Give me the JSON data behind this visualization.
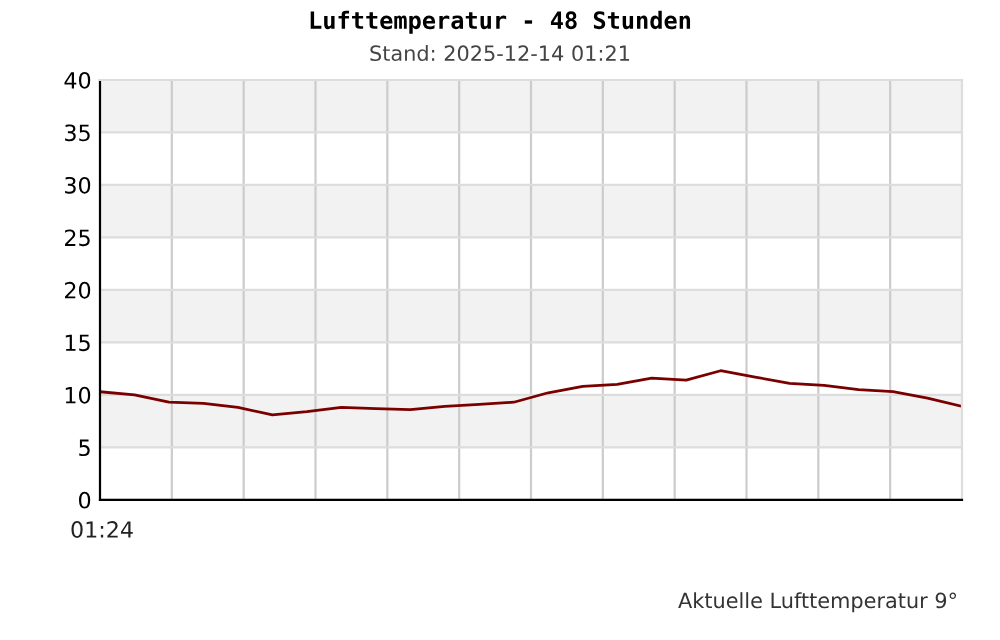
{
  "chart_data": {
    "type": "line",
    "title": "Lufttemperatur - 48 Stunden",
    "subtitle": "Stand: 2025-12-14 01:21",
    "annotations": [
      "01:24",
      "Aktuelle Lufttemperatur 9°"
    ],
    "categories": [
      null,
      null,
      null,
      null,
      null,
      null,
      null,
      null,
      null,
      null,
      null,
      null,
      null,
      null,
      null,
      null,
      null,
      null,
      null,
      null,
      null,
      null,
      null,
      null,
      null,
      null
    ],
    "series": [
      {
        "color": "#7a0000",
        "values": [
          10.3,
          10.0,
          9.3,
          9.2,
          8.8,
          8.1,
          8.4,
          8.8,
          8.7,
          8.6,
          8.9,
          9.1,
          9.3,
          10.2,
          10.8,
          11.0,
          11.6,
          11.4,
          12.3,
          11.7,
          11.1,
          10.9,
          10.5,
          10.3,
          9.7,
          8.9
        ]
      }
    ],
    "ylim": [
      0,
      40
    ],
    "yticks": [
      0,
      5,
      10,
      15,
      20,
      25,
      30,
      35,
      40
    ],
    "grid": true,
    "line_style": "solid",
    "marker": "none"
  }
}
